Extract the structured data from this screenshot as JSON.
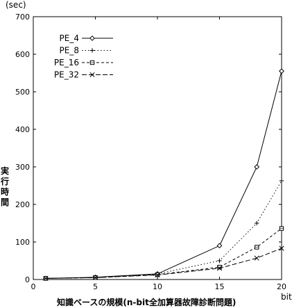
{
  "chart_data": {
    "type": "line",
    "title": "",
    "xlabel": "知識ベースの規模(n-bit全加算器故障診断問題)",
    "xunit": "bit",
    "ylabel": "実行時間",
    "yunit": "(sec)",
    "xlim": [
      0,
      20
    ],
    "ylim": [
      0,
      700
    ],
    "xticks": [
      0,
      5,
      10,
      15,
      20
    ],
    "yticks": [
      0,
      100,
      200,
      300,
      400,
      500,
      600,
      700
    ],
    "grid": false,
    "legend_position": "top-left",
    "x": [
      1,
      5,
      10,
      15,
      18,
      20
    ],
    "series": [
      {
        "name": "PE_4",
        "line": "solid",
        "marker": "diamond",
        "values": [
          3,
          6,
          15,
          90,
          300,
          555
        ]
      },
      {
        "name": "PE_8",
        "line": "dotted",
        "marker": "plus",
        "values": [
          3,
          5,
          15,
          50,
          150,
          263
        ]
      },
      {
        "name": "PE_16",
        "line": "dashed",
        "marker": "square",
        "values": [
          3,
          5,
          13,
          33,
          86,
          136
        ]
      },
      {
        "name": "PE_32",
        "line": "long-dash",
        "marker": "cross",
        "values": [
          3,
          5,
          12,
          30,
          57,
          83
        ]
      }
    ]
  }
}
